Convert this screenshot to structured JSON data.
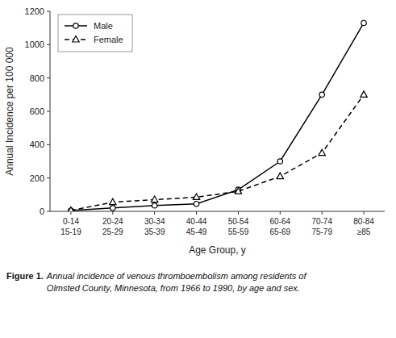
{
  "chart_data": {
    "type": "line",
    "categories": [
      "0-14\n15-19",
      "20-24\n25-29",
      "30-34\n35-39",
      "40-44\n45-49",
      "50-54\n55-59",
      "60-64\n65-69",
      "70-74\n75-79",
      "80-84\n≥85"
    ],
    "series": [
      {
        "name": "Male",
        "color": "#000000",
        "marker": "circle",
        "line_style": "solid",
        "values": [
          5,
          20,
          35,
          45,
          130,
          300,
          700,
          1130
        ]
      },
      {
        "name": "Female",
        "color": "#000000",
        "marker": "triangle",
        "line_style": "dashed",
        "values": [
          5,
          55,
          70,
          85,
          120,
          210,
          350,
          700
        ]
      }
    ],
    "y_label": "Annual Incidence per 100 000",
    "x_label": "Age Group, y",
    "ylim": [
      0,
      1200
    ],
    "yticks": [
      0,
      200,
      400,
      600,
      800,
      1000,
      1200
    ],
    "grid": false,
    "legend": "upper left",
    "annotations": [
      "Figure 1.",
      "Annual incidence of venous thromboembolism among residents of\nOlmsted County, Minnesota, from 1966 to 1990, by age and sex."
    ]
  }
}
